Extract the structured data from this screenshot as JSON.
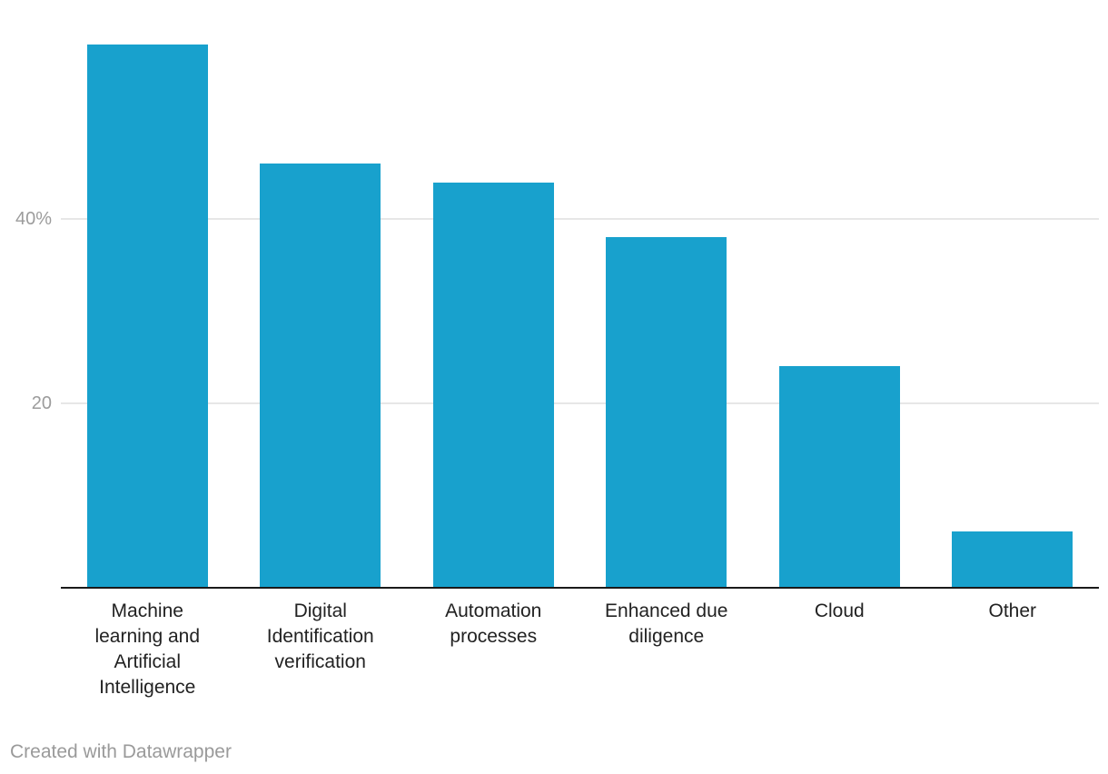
{
  "chart_data": {
    "type": "bar",
    "title": "",
    "xlabel": "",
    "ylabel": "",
    "unit": "%",
    "categories": [
      "Machine learning and Artificial Intelligence",
      "Digital Identification verification",
      "Automation processes",
      "Enhanced due diligence",
      "Cloud",
      "Other"
    ],
    "values": [
      59,
      46,
      44,
      38,
      24,
      6
    ],
    "ylim": [
      0,
      63.8
    ],
    "y_ticks": [
      {
        "value": 40,
        "label": "40%"
      },
      {
        "value": 20,
        "label": "20"
      }
    ],
    "grid": "horizontal-lines",
    "legend": "none",
    "bar_color": "#18a1cd"
  },
  "colors": {
    "bar": "#18a1cd",
    "grid_line": "#e7e7e7",
    "axis_line": "#1a1a1a",
    "tick_label": "#9c9c9c",
    "category_label": "#222222",
    "credit": "#9a9a9a",
    "background": "#ffffff"
  },
  "footer": {
    "credit": "Created with Datawrapper"
  }
}
